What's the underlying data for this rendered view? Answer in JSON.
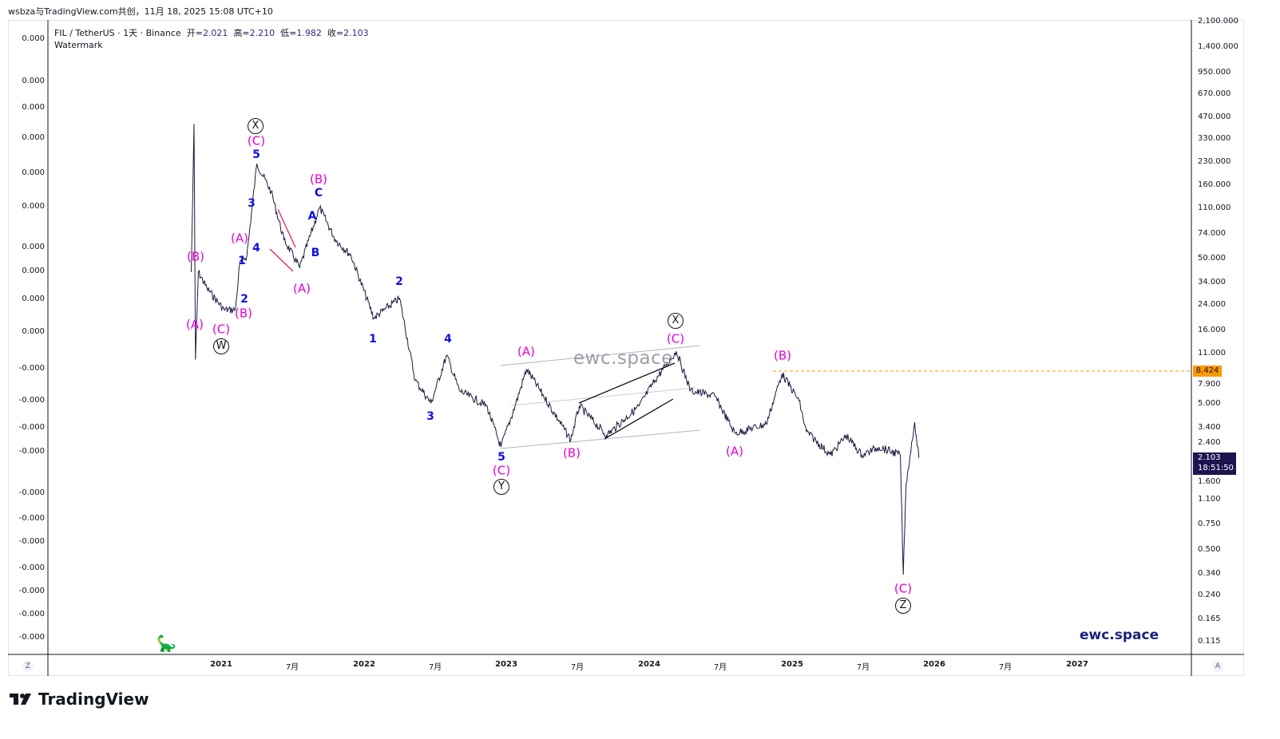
{
  "credit": "wsbza与TradingView.com共创，11月 18, 2025 15:08 UTC+10",
  "legend": {
    "symbol": "FIL / TetherUS · 1天 · Binance",
    "open_label": "开=",
    "open": "2.021",
    "high_label": "高=",
    "high": "2.210",
    "low_label": "低=",
    "low": "1.982",
    "close_label": "收=",
    "close": "2.103",
    "indicator": "Watermark"
  },
  "left_axis": [
    "0.000",
    "0.000",
    "0.000",
    "0.000",
    "0.000",
    "0.000",
    "0.000",
    "0.000",
    "0.000",
    "0.000",
    "-0.000",
    "-0.000",
    "-0.000",
    "-0.000",
    "-0.000",
    "-0.000",
    "-0.000",
    "-0.000",
    "-0.000",
    "-0.000",
    "-0.000"
  ],
  "right_axis": [
    "2,100.000",
    "1,400.000",
    "950.000",
    "670.000",
    "470.000",
    "330.000",
    "230.000",
    "160.000",
    "110.000",
    "74.000",
    "50.000",
    "34.000",
    "24.000",
    "16.000",
    "11.000",
    "7.900",
    "5.000",
    "3.400",
    "2.400",
    "1.600",
    "1.100",
    "0.750",
    "0.500",
    "0.340",
    "0.240",
    "0.165",
    "0.115"
  ],
  "x_axis": [
    "2021",
    "7月",
    "2022",
    "7月",
    "2023",
    "7月",
    "2024",
    "7月",
    "2025",
    "7月",
    "2026",
    "7月",
    "2027"
  ],
  "level_tag": "8.424",
  "price_tag": {
    "price": "2.103",
    "countdown": "18:51:50"
  },
  "watermark_mid": "ewc.space",
  "watermark_corner": "ewc.space",
  "brand": "TradingView",
  "axis_buttons": {
    "left": "Z",
    "right": "A"
  },
  "wave_labels": [
    "(B)",
    "(A)",
    "(C)",
    "(A)",
    "(B)",
    "(C)",
    "(B)",
    "(A)",
    "(A)",
    "(C)",
    "(B)",
    "(C)",
    "(B)",
    "(A)",
    "(C)",
    "5",
    "3",
    "4",
    "1",
    "2",
    "C",
    "A",
    "B",
    "2",
    "1",
    "4",
    "3",
    "5",
    "X",
    "W",
    "Y",
    "X",
    "Z"
  ],
  "colors": {
    "candles": "#1a1a40",
    "level": "#ff9800",
    "wave_minor": "#e600d6",
    "wave_sub": "#1010e0"
  },
  "chart_data": {
    "type": "line",
    "scale": "log",
    "x_unit": "year",
    "points": [
      [
        2020.79,
        40
      ],
      [
        2020.81,
        420
      ],
      [
        2020.82,
        10
      ],
      [
        2020.84,
        40
      ],
      [
        2020.9,
        31
      ],
      [
        2021.02,
        22
      ],
      [
        2021.1,
        22
      ],
      [
        2021.13,
        46
      ],
      [
        2021.18,
        52
      ],
      [
        2021.25,
        223
      ],
      [
        2021.35,
        143
      ],
      [
        2021.44,
        67
      ],
      [
        2021.55,
        43
      ],
      [
        2021.69,
        111
      ],
      [
        2021.8,
        67
      ],
      [
        2021.91,
        52
      ],
      [
        2022.07,
        19.3
      ],
      [
        2022.14,
        21.9
      ],
      [
        2022.25,
        26.4
      ],
      [
        2022.36,
        7.2
      ],
      [
        2022.47,
        5.0
      ],
      [
        2022.58,
        10.7
      ],
      [
        2022.67,
        6.1
      ],
      [
        2022.86,
        4.8
      ],
      [
        2022.96,
        2.5
      ],
      [
        2023.06,
        4.8
      ],
      [
        2023.14,
        8.6
      ],
      [
        2023.26,
        5.6
      ],
      [
        2023.45,
        2.8
      ],
      [
        2023.51,
        4.8
      ],
      [
        2023.7,
        3.0
      ],
      [
        2023.93,
        4.8
      ],
      [
        2024.04,
        7.2
      ],
      [
        2024.19,
        11.4
      ],
      [
        2024.29,
        6.1
      ],
      [
        2024.46,
        5.6
      ],
      [
        2024.6,
        3.1
      ],
      [
        2024.82,
        3.6
      ],
      [
        2024.93,
        8.0
      ],
      [
        2025.05,
        5.2
      ],
      [
        2025.1,
        3.2
      ],
      [
        2025.27,
        2.2
      ],
      [
        2025.38,
        3.0
      ],
      [
        2025.49,
        2.2
      ],
      [
        2025.61,
        2.5
      ],
      [
        2025.76,
        2.2
      ],
      [
        2025.78,
        0.33
      ],
      [
        2025.8,
        1.4
      ],
      [
        2025.86,
        3.7
      ],
      [
        2025.89,
        2.1
      ]
    ],
    "horizontal_level": 8.424
  }
}
